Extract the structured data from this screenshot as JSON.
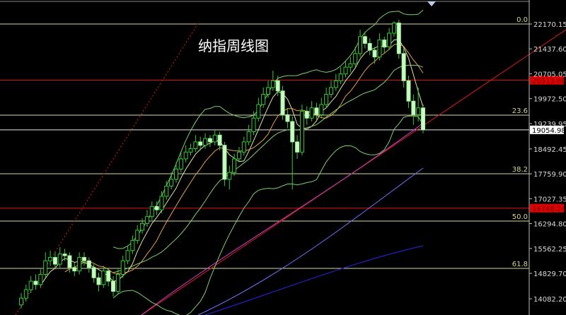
{
  "chart_data": {
    "type": "candlestick",
    "title": "纳指周线图",
    "ylim": [
      13950,
      22400
    ],
    "y_ticks": [
      "22170.15",
      "21437.60",
      "20705.05",
      "19972.50",
      "19239.95",
      "18492.45",
      "17759.90",
      "17027.35",
      "16294.80",
      "15562.25",
      "14829.70",
      "14082.20"
    ],
    "y_tick_values": [
      22170.15,
      21437.6,
      20705.05,
      19972.5,
      19239.95,
      18492.45,
      17759.9,
      17027.35,
      16294.8,
      15562.25,
      14829.7,
      14082.2
    ],
    "fib_levels": [
      {
        "label": "0.0",
        "value": 22170.15
      },
      {
        "label": "23.6",
        "value": 19488
      },
      {
        "label": "38.2",
        "value": 17762
      },
      {
        "label": "50.0",
        "value": 16370
      },
      {
        "label": "61.8",
        "value": 14977
      }
    ],
    "red_levels": [
      {
        "label": "20513.66",
        "value": 20513.66
      },
      {
        "label": "16748.24",
        "value": 16748.24
      }
    ],
    "current_price": {
      "label": "19054.98",
      "value": 19054.98
    },
    "colors": {
      "up": "#33cc33",
      "down": "#c8ffc0",
      "red_line": "#e01010",
      "fib_line": "#d8d8a0",
      "ma5": "#e0e0a0",
      "ma10": "#e8a040",
      "ma20": "#7fcf6f",
      "boll": "#7fcf6f",
      "ma60": "#c040c0",
      "ma120": "#2020c0"
    },
    "candles_ohlc": [
      [
        13900,
        14250,
        13800,
        14100
      ],
      [
        14100,
        14500,
        14000,
        14350
      ],
      [
        14350,
        14750,
        14250,
        14600
      ],
      [
        14600,
        14800,
        14350,
        14500
      ],
      [
        14500,
        14950,
        14400,
        14800
      ],
      [
        14800,
        15450,
        14700,
        15200
      ],
      [
        15200,
        15500,
        15050,
        15300
      ],
      [
        15300,
        15450,
        14950,
        15100
      ],
      [
        15100,
        15600,
        15000,
        15400
      ],
      [
        15400,
        15550,
        15200,
        15350
      ],
      [
        15350,
        15450,
        14850,
        15000
      ],
      [
        15000,
        15150,
        14750,
        14900
      ],
      [
        14900,
        15450,
        14800,
        15300
      ],
      [
        15300,
        15450,
        15050,
        15200
      ],
      [
        15200,
        15300,
        14850,
        15000
      ],
      [
        15000,
        15100,
        14550,
        14700
      ],
      [
        14700,
        14850,
        14300,
        14500
      ],
      [
        14500,
        15050,
        14400,
        14900
      ],
      [
        14900,
        15000,
        14450,
        14600
      ],
      [
        14600,
        14750,
        14150,
        14300
      ],
      [
        14300,
        14950,
        14200,
        14800
      ],
      [
        14800,
        15350,
        14700,
        15200
      ],
      [
        15200,
        15650,
        15100,
        15500
      ],
      [
        15500,
        15950,
        15400,
        15800
      ],
      [
        15800,
        16250,
        15700,
        16100
      ],
      [
        16100,
        16450,
        16000,
        16300
      ],
      [
        16300,
        16700,
        16200,
        16500
      ],
      [
        16500,
        16950,
        16400,
        16800
      ],
      [
        16800,
        16950,
        16550,
        16700
      ],
      [
        16700,
        17250,
        16600,
        17100
      ],
      [
        17100,
        17550,
        17000,
        17400
      ],
      [
        17400,
        17800,
        17300,
        17600
      ],
      [
        17600,
        18100,
        17500,
        17900
      ],
      [
        17900,
        18400,
        17800,
        18200
      ],
      [
        18200,
        18600,
        18100,
        18400
      ],
      [
        18400,
        18650,
        18300,
        18500
      ],
      [
        18500,
        18900,
        18400,
        18700
      ],
      [
        18700,
        18850,
        18450,
        18600
      ],
      [
        18600,
        18950,
        18500,
        18800
      ],
      [
        18800,
        18900,
        18550,
        18700
      ],
      [
        18700,
        19050,
        18600,
        18900
      ],
      [
        18900,
        19000,
        18450,
        18600
      ],
      [
        18600,
        18700,
        17400,
        17600
      ],
      [
        17600,
        18000,
        17300,
        17800
      ],
      [
        17800,
        18350,
        17700,
        18200
      ],
      [
        18200,
        18550,
        18100,
        18400
      ],
      [
        18400,
        18850,
        18300,
        18700
      ],
      [
        18700,
        19200,
        18600,
        19000
      ],
      [
        19000,
        19600,
        18900,
        19400
      ],
      [
        19400,
        20000,
        19300,
        19800
      ],
      [
        19800,
        20300,
        19700,
        20100
      ],
      [
        20100,
        20500,
        20000,
        20300
      ],
      [
        20300,
        20800,
        20200,
        20500
      ],
      [
        20500,
        20650,
        20050,
        20200
      ],
      [
        20200,
        20350,
        19350,
        19500
      ],
      [
        19500,
        19700,
        19100,
        19300
      ],
      [
        19300,
        19450,
        17300,
        18700
      ],
      [
        18700,
        18900,
        18200,
        18400
      ],
      [
        18400,
        19800,
        18300,
        19600
      ],
      [
        19600,
        19750,
        19200,
        19400
      ],
      [
        19400,
        19900,
        19300,
        19700
      ],
      [
        19700,
        19850,
        19350,
        19500
      ],
      [
        19500,
        20000,
        19400,
        19800
      ],
      [
        19800,
        20300,
        19700,
        20100
      ],
      [
        20100,
        20500,
        20000,
        20300
      ],
      [
        20300,
        20700,
        20200,
        20500
      ],
      [
        20500,
        20900,
        20400,
        20700
      ],
      [
        20700,
        21100,
        20600,
        20900
      ],
      [
        20900,
        21200,
        20750,
        21000
      ],
      [
        21000,
        21500,
        20900,
        21300
      ],
      [
        21300,
        22000,
        21200,
        21800
      ],
      [
        21800,
        21950,
        21450,
        21600
      ],
      [
        21600,
        21750,
        21250,
        21400
      ],
      [
        21400,
        21500,
        21000,
        21200
      ],
      [
        21200,
        21900,
        21100,
        21700
      ],
      [
        21700,
        21800,
        21300,
        21500
      ],
      [
        21500,
        22050,
        21400,
        21900
      ],
      [
        21900,
        22250,
        21800,
        22200
      ],
      [
        22200,
        22300,
        21150,
        21300
      ],
      [
        21300,
        21450,
        20300,
        20500
      ],
      [
        20500,
        20650,
        19700,
        19900
      ],
      [
        19900,
        20100,
        19200,
        19500
      ],
      [
        19500,
        20300,
        19300,
        19700
      ],
      [
        19700,
        19800,
        18950,
        19054.98
      ]
    ],
    "grid": false,
    "legend": "none"
  }
}
